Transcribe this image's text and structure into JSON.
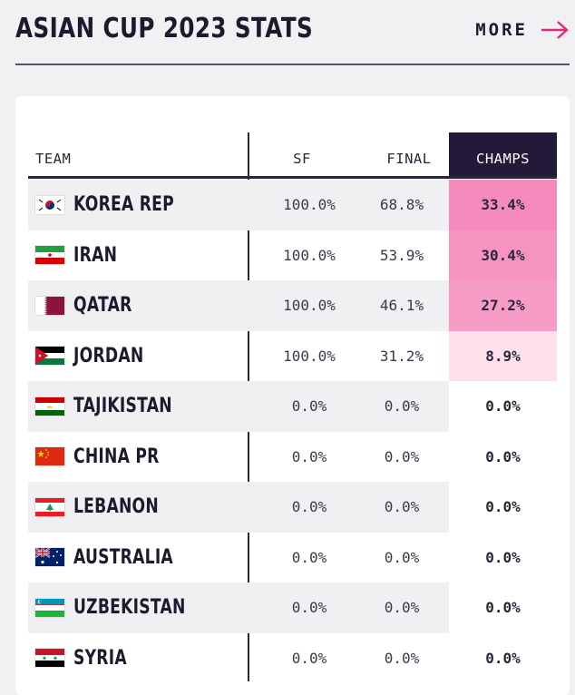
{
  "header": {
    "title": "ASIAN CUP 2023 STATS",
    "more_label": "MORE",
    "accent_color": "#e0287a"
  },
  "table": {
    "columns": {
      "team": "TEAM",
      "sf": "SF",
      "final": "FINAL",
      "champs": "CHAMPS"
    },
    "rows": [
      {
        "team": "KOREA REP",
        "flag": "south-korea-flag",
        "sf": "100.0%",
        "final": "68.8%",
        "champs": "33.4%",
        "champs_bg": "#f58bbd"
      },
      {
        "team": "IRAN",
        "flag": "iran-flag",
        "sf": "100.0%",
        "final": "53.9%",
        "champs": "30.4%",
        "champs_bg": "#f693c1"
      },
      {
        "team": "QATAR",
        "flag": "qatar-flag",
        "sf": "100.0%",
        "final": "46.1%",
        "champs": "27.2%",
        "champs_bg": "#f79cc6"
      },
      {
        "team": "JORDAN",
        "flag": "jordan-flag",
        "sf": "100.0%",
        "final": "31.2%",
        "champs": "8.9%",
        "champs_bg": "#fde0ec"
      },
      {
        "team": "TAJIKISTAN",
        "flag": "tajikistan-flag",
        "sf": "0.0%",
        "final": "0.0%",
        "champs": "0.0%",
        "champs_bg": ""
      },
      {
        "team": "CHINA PR",
        "flag": "china-flag",
        "sf": "0.0%",
        "final": "0.0%",
        "champs": "0.0%",
        "champs_bg": ""
      },
      {
        "team": "LEBANON",
        "flag": "lebanon-flag",
        "sf": "0.0%",
        "final": "0.0%",
        "champs": "0.0%",
        "champs_bg": ""
      },
      {
        "team": "AUSTRALIA",
        "flag": "australia-flag",
        "sf": "0.0%",
        "final": "0.0%",
        "champs": "0.0%",
        "champs_bg": ""
      },
      {
        "team": "UZBEKISTAN",
        "flag": "uzbekistan-flag",
        "sf": "0.0%",
        "final": "0.0%",
        "champs": "0.0%",
        "champs_bg": ""
      },
      {
        "team": "SYRIA",
        "flag": "syria-flag",
        "sf": "0.0%",
        "final": "0.0%",
        "champs": "0.0%",
        "champs_bg": ""
      }
    ]
  }
}
